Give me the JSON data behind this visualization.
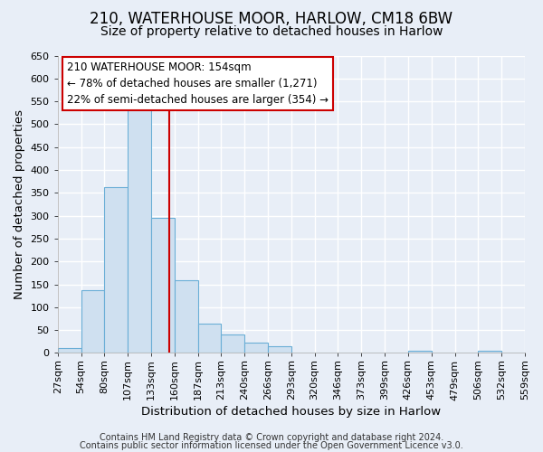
{
  "title": "210, WATERHOUSE MOOR, HARLOW, CM18 6BW",
  "subtitle": "Size of property relative to detached houses in Harlow",
  "xlabel": "Distribution of detached houses by size in Harlow",
  "ylabel": "Number of detached properties",
  "bar_color": "#cfe0f0",
  "bar_edge_color": "#6aaed6",
  "bar_heights": [
    10,
    137,
    363,
    537,
    295,
    160,
    65,
    40,
    22,
    15,
    0,
    0,
    0,
    0,
    0,
    5,
    0,
    0,
    5,
    0
  ],
  "bin_labels": [
    "27sqm",
    "54sqm",
    "80sqm",
    "107sqm",
    "133sqm",
    "160sqm",
    "187sqm",
    "213sqm",
    "240sqm",
    "266sqm",
    "293sqm",
    "320sqm",
    "346sqm",
    "373sqm",
    "399sqm",
    "426sqm",
    "453sqm",
    "479sqm",
    "506sqm",
    "532sqm",
    "559sqm"
  ],
  "ylim": [
    0,
    650
  ],
  "yticks": [
    0,
    50,
    100,
    150,
    200,
    250,
    300,
    350,
    400,
    450,
    500,
    550,
    600,
    650
  ],
  "vline_color": "#cc0000",
  "annotation_text": "210 WATERHOUSE MOOR: 154sqm\n← 78% of detached houses are smaller (1,271)\n22% of semi-detached houses are larger (354) →",
  "annotation_box_color": "#ffffff",
  "annotation_box_edge": "#cc0000",
  "footer_line1": "Contains HM Land Registry data © Crown copyright and database right 2024.",
  "footer_line2": "Contains public sector information licensed under the Open Government Licence v3.0.",
  "background_color": "#e8eef7",
  "grid_color": "#ffffff",
  "title_fontsize": 12,
  "subtitle_fontsize": 10,
  "label_fontsize": 9.5,
  "tick_fontsize": 8,
  "annotation_fontsize": 8.5,
  "footer_fontsize": 7
}
